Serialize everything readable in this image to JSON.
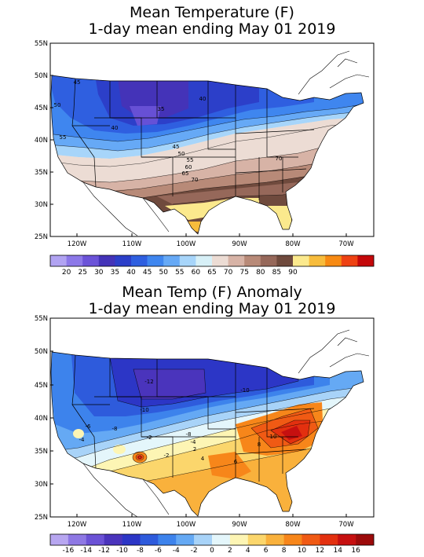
{
  "maps": [
    {
      "title_line1": "Mean Temperature (F)",
      "title_line2": "1-day mean ending May 01 2019",
      "lat_labels": [
        "55N",
        "50N",
        "45N",
        "40N",
        "35N",
        "30N",
        "25N"
      ],
      "lon_labels": [
        "120W",
        "110W",
        "100W",
        "90W",
        "80W",
        "70W"
      ],
      "contour_labels": [
        "45",
        "50",
        "35",
        "40",
        "40",
        "55",
        "45",
        "50",
        "55",
        "60",
        "65",
        "70",
        "70"
      ],
      "legend": {
        "colors": [
          "#b1a3f2",
          "#8c78e8",
          "#6b53d8",
          "#4433b8",
          "#2c3fc9",
          "#2f5fe0",
          "#3f86ef",
          "#66a9f6",
          "#a7d5fa",
          "#d7f0f7",
          "#ecdcd4",
          "#d7b3a6",
          "#b88a78",
          "#96685a",
          "#6f4a3d",
          "#fbe98d",
          "#f7bc3c",
          "#f78a13",
          "#ee4213",
          "#c4080a"
        ],
        "labels": [
          "20",
          "25",
          "30",
          "35",
          "40",
          "45",
          "50",
          "55",
          "60",
          "65",
          "70",
          "75",
          "80",
          "85",
          "90"
        ]
      }
    },
    {
      "title_line1": "Mean Temp (F) Anomaly",
      "title_line2": "1-day mean ending May 01 2019",
      "lat_labels": [
        "55N",
        "50N",
        "45N",
        "40N",
        "35N",
        "30N",
        "25N"
      ],
      "lon_labels": [
        "120W",
        "110W",
        "100W",
        "90W",
        "80W",
        "70W"
      ],
      "contour_labels": [
        "-12",
        "-10",
        "-10",
        "-8",
        "-6",
        "-8",
        "-4",
        "-2",
        "2",
        "-4",
        "-2",
        "4",
        "6",
        "10",
        "8"
      ],
      "legend": {
        "colors": [
          "#b7a6f0",
          "#8e78e4",
          "#6b52d6",
          "#4a34bc",
          "#2c36c6",
          "#2e5bdc",
          "#3d83ec",
          "#65a9f4",
          "#a8d3f8",
          "#e4f6fb",
          "#fdf5b4",
          "#fbd66c",
          "#f9b13c",
          "#f7861a",
          "#f05a14",
          "#e3300f",
          "#c61010",
          "#9c0a0a"
        ],
        "labels": [
          "-16",
          "-14",
          "-12",
          "-10",
          "-8",
          "-6",
          "-4",
          "-2",
          "0",
          "2",
          "4",
          "6",
          "8",
          "10",
          "12",
          "14",
          "16"
        ]
      }
    }
  ]
}
